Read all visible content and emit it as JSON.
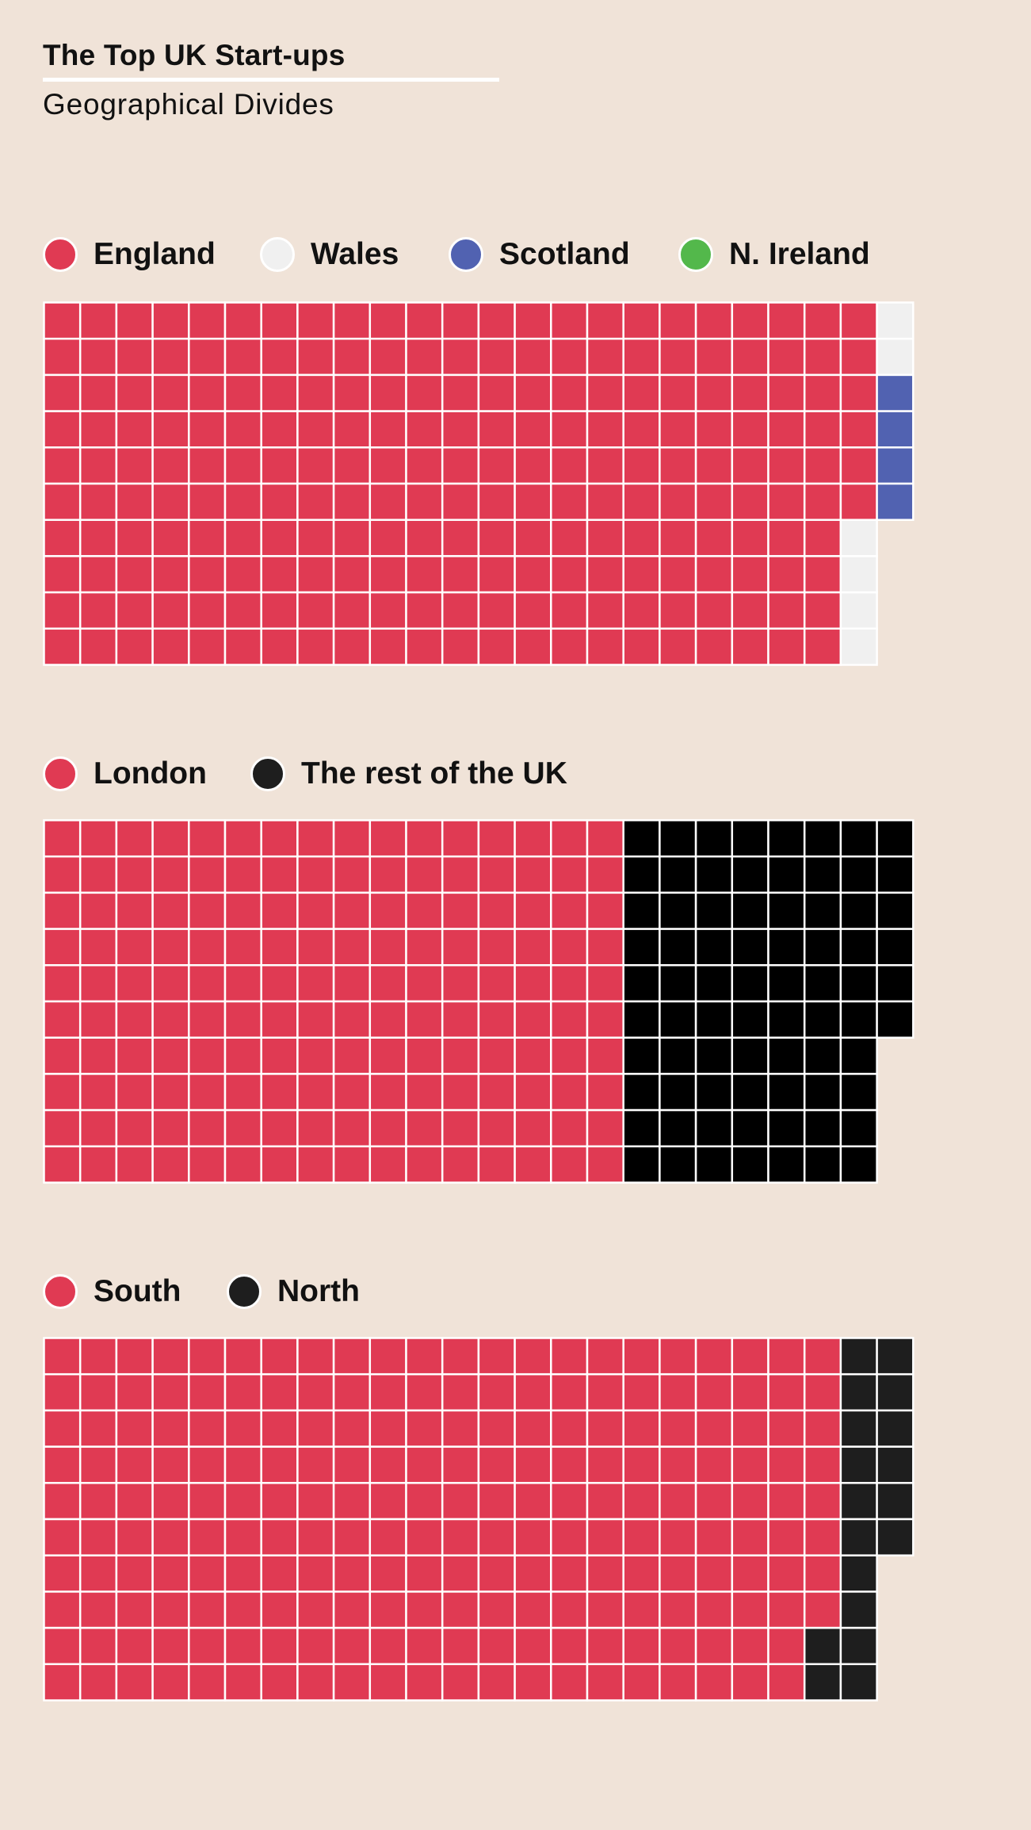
{
  "header": {
    "title": "The Top UK Start-ups",
    "subtitle": "Geographical Divides"
  },
  "colors": {
    "background": "#f0e3d8",
    "gridline": "#ffffff"
  },
  "chart_data": [
    {
      "type": "waffle",
      "rows": 10,
      "series": [
        {
          "name": "England",
          "value": 226,
          "color": "#e03a53"
        },
        {
          "name": "Wales",
          "value": 6,
          "color": "#f0f0f0"
        },
        {
          "name": "Scotland",
          "value": 4,
          "color": "#5162b1"
        },
        {
          "name": "N. Ireland",
          "value": 0,
          "color": "#53b84b"
        }
      ]
    },
    {
      "type": "waffle",
      "rows": 10,
      "series": [
        {
          "name": "London",
          "value": 160,
          "color": "#e03a53"
        },
        {
          "name": "The rest of the UK",
          "value": 76,
          "color": "#000000",
          "legend_color": "#1e1e1e"
        }
      ]
    },
    {
      "type": "waffle",
      "rows": 10,
      "series": [
        {
          "name": "South",
          "value": 218,
          "color": "#e03a53"
        },
        {
          "name": "North",
          "value": 18,
          "color": "#1e1e1e"
        }
      ]
    }
  ]
}
